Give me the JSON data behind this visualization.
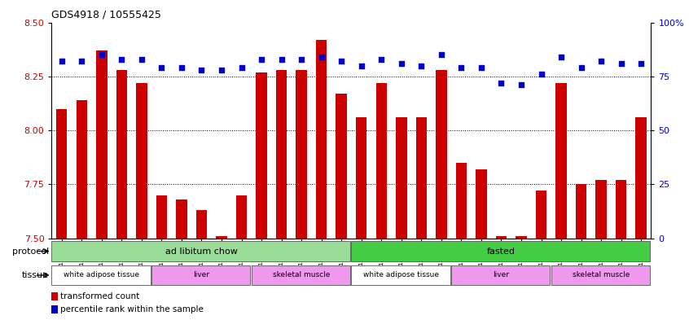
{
  "title": "GDS4918 / 10555425",
  "samples": [
    "GSM1131278",
    "GSM1131279",
    "GSM1131280",
    "GSM1131281",
    "GSM1131282",
    "GSM1131283",
    "GSM1131284",
    "GSM1131285",
    "GSM1131286",
    "GSM1131287",
    "GSM1131288",
    "GSM1131289",
    "GSM1131290",
    "GSM1131291",
    "GSM1131292",
    "GSM1131293",
    "GSM1131294",
    "GSM1131295",
    "GSM1131296",
    "GSM1131297",
    "GSM1131298",
    "GSM1131299",
    "GSM1131300",
    "GSM1131301",
    "GSM1131302",
    "GSM1131303",
    "GSM1131304",
    "GSM1131305",
    "GSM1131306",
    "GSM1131307"
  ],
  "red_values": [
    8.1,
    8.14,
    8.37,
    8.28,
    8.22,
    7.7,
    7.68,
    7.63,
    7.51,
    7.7,
    8.27,
    8.28,
    8.28,
    8.42,
    8.17,
    8.06,
    8.22,
    8.06,
    8.06,
    8.28,
    7.85,
    7.82,
    7.51,
    7.51,
    7.72,
    8.22,
    7.75,
    7.77,
    7.77,
    8.06
  ],
  "blue_values": [
    82,
    82,
    85,
    83,
    83,
    79,
    79,
    78,
    78,
    79,
    83,
    83,
    83,
    84,
    82,
    80,
    83,
    81,
    80,
    85,
    79,
    79,
    72,
    71,
    76,
    84,
    79,
    82,
    81,
    81
  ],
  "ybase": 7.5,
  "ylim_left": [
    7.5,
    8.5
  ],
  "ylim_right": [
    0,
    100
  ],
  "yticks_left": [
    7.5,
    7.75,
    8.0,
    8.25,
    8.5
  ],
  "yticks_right": [
    0,
    25,
    50,
    75,
    100
  ],
  "ytick_right_labels": [
    "0",
    "25",
    "50",
    "75",
    "100%"
  ],
  "left_tick_color": "#cc0000",
  "right_tick_color": "#0000cc",
  "bar_color": "#cc0000",
  "dot_color": "#0000cc",
  "grid_lines": [
    7.75,
    8.0,
    8.25
  ],
  "protocol_groups": [
    {
      "label": "ad libitum chow",
      "start": 0,
      "end": 15,
      "color": "#99dd99"
    },
    {
      "label": "fasted",
      "start": 15,
      "end": 30,
      "color": "#44cc44"
    }
  ],
  "tissue_groups": [
    {
      "label": "white adipose tissue",
      "start": 0,
      "end": 5,
      "color": "#ffffff"
    },
    {
      "label": "liver",
      "start": 5,
      "end": 10,
      "color": "#ee99ee"
    },
    {
      "label": "skeletal muscle",
      "start": 10,
      "end": 15,
      "color": "#ee99ee"
    },
    {
      "label": "white adipose tissue",
      "start": 15,
      "end": 20,
      "color": "#ffffff"
    },
    {
      "label": "liver",
      "start": 20,
      "end": 25,
      "color": "#ee99ee"
    },
    {
      "label": "skeletal muscle",
      "start": 25,
      "end": 30,
      "color": "#ee99ee"
    }
  ],
  "protocol_label": "protocol",
  "tissue_label": "tissue",
  "legend_items": [
    {
      "label": "transformed count",
      "color": "#cc0000"
    },
    {
      "label": "percentile rank within the sample",
      "color": "#0000cc"
    }
  ]
}
